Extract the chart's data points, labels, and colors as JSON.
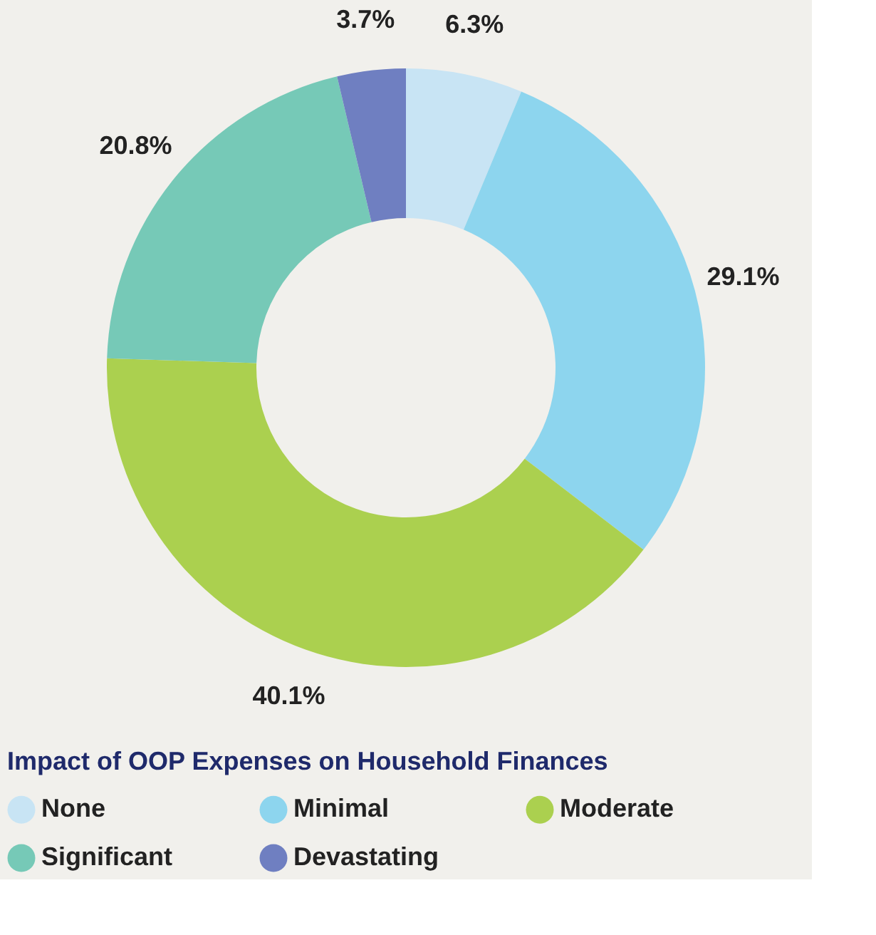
{
  "chart_data": {
    "type": "donut",
    "categories": [
      "None",
      "Minimal",
      "Moderate",
      "Significant",
      "Devastating"
    ],
    "values": [
      6.3,
      29.1,
      40.1,
      20.8,
      3.7
    ],
    "value_labels": [
      "6.3%",
      "29.1%",
      "40.1%",
      "20.8%",
      "3.7%"
    ],
    "colors": [
      "#c8e4f4",
      "#8dd5ee",
      "#abd04f",
      "#76c9b7",
      "#6f7fc1"
    ],
    "legend_title": "Impact of OOP Expenses on Household Finances",
    "legend": "bottom"
  }
}
